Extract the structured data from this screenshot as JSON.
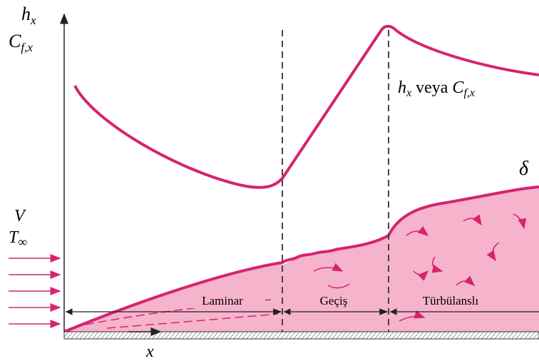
{
  "y_axis_labels": [
    {
      "base": "h",
      "sub": "x"
    },
    {
      "base": "C",
      "sub": "f,x"
    }
  ],
  "curve_label": {
    "h": "h",
    "h_sub": "x",
    "word": "veya",
    "c": "C",
    "c_sub": "f,x"
  },
  "boundary_layer_label": "δ",
  "flow_labels": {
    "velocity": "V",
    "temperature": "T",
    "temperature_sub": "∞"
  },
  "regions": [
    "Laminar",
    "Geçiş",
    "Türbülanslı"
  ],
  "x_axis_label": "x"
}
